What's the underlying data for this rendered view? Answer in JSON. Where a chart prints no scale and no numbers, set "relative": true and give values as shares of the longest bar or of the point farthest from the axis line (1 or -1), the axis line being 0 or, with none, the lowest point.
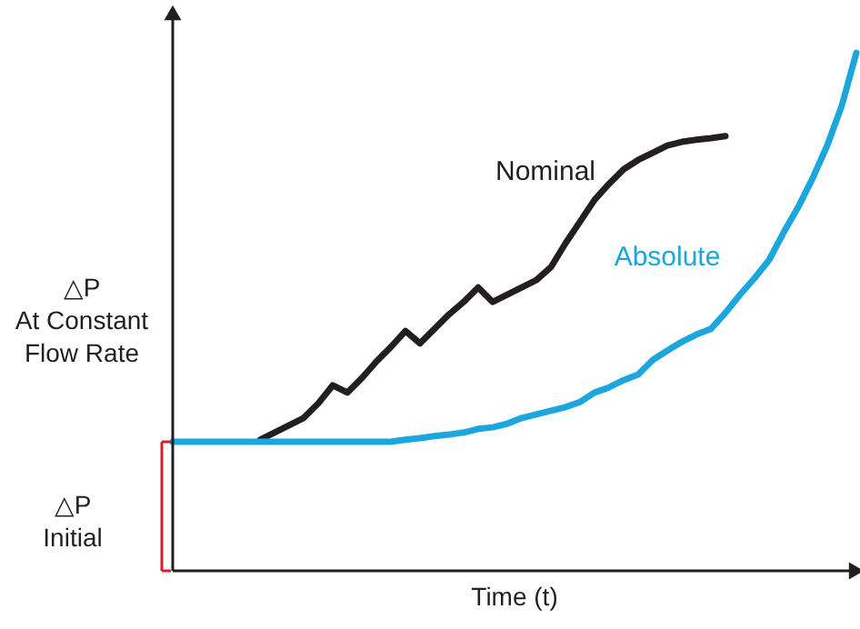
{
  "chart_data": {
    "type": "line",
    "relative": true,
    "xlabel": "Time (t)",
    "ylabel": "△P\nAt Constant\nFlow Rate",
    "categories": [
      null,
      null,
      null,
      null,
      null,
      null,
      null,
      null,
      null,
      null,
      null,
      null,
      null,
      null,
      null,
      null,
      null,
      null,
      null,
      null,
      null,
      null,
      null,
      null,
      null,
      null,
      null,
      null,
      null,
      null,
      null,
      null,
      null,
      null,
      null,
      null,
      null,
      null,
      null,
      null,
      null,
      null,
      null,
      null,
      null,
      null,
      null,
      null
    ],
    "series": [
      {
        "name": "Nominal",
        "color": "#231f20",
        "values": [
          null,
          null,
          null,
          null,
          null,
          null,
          0.253,
          0.267,
          0.281,
          0.295,
          0.323,
          0.358,
          0.344,
          0.372,
          0.404,
          0.432,
          0.463,
          0.439,
          0.467,
          0.495,
          0.519,
          0.547,
          0.519,
          0.533,
          0.547,
          0.561,
          0.586,
          0.632,
          0.674,
          0.716,
          0.747,
          0.775,
          0.793,
          0.807,
          0.821,
          0.828,
          0.832,
          0.835,
          0.839,
          null,
          null,
          null,
          null,
          null,
          null,
          null,
          null,
          null
        ]
      },
      {
        "name": "Absolute",
        "color": "#1ba6dd",
        "values": [
          0.249,
          0.249,
          0.249,
          0.249,
          0.249,
          0.249,
          0.249,
          0.249,
          0.249,
          0.249,
          0.249,
          0.249,
          0.249,
          0.249,
          0.249,
          0.249,
          0.253,
          0.256,
          0.26,
          0.263,
          0.267,
          0.274,
          0.277,
          0.284,
          0.295,
          0.302,
          0.309,
          0.316,
          0.326,
          0.344,
          0.354,
          0.368,
          0.379,
          0.407,
          0.425,
          0.442,
          0.456,
          0.467,
          0.498,
          0.533,
          0.565,
          0.6,
          0.653,
          0.702,
          0.758,
          0.821,
          0.898,
          1.0
        ]
      }
    ],
    "annotations": [
      "△P\nInitial"
    ],
    "legend": false,
    "grid": false,
    "marker": "none",
    "line_style": "solid"
  }
}
